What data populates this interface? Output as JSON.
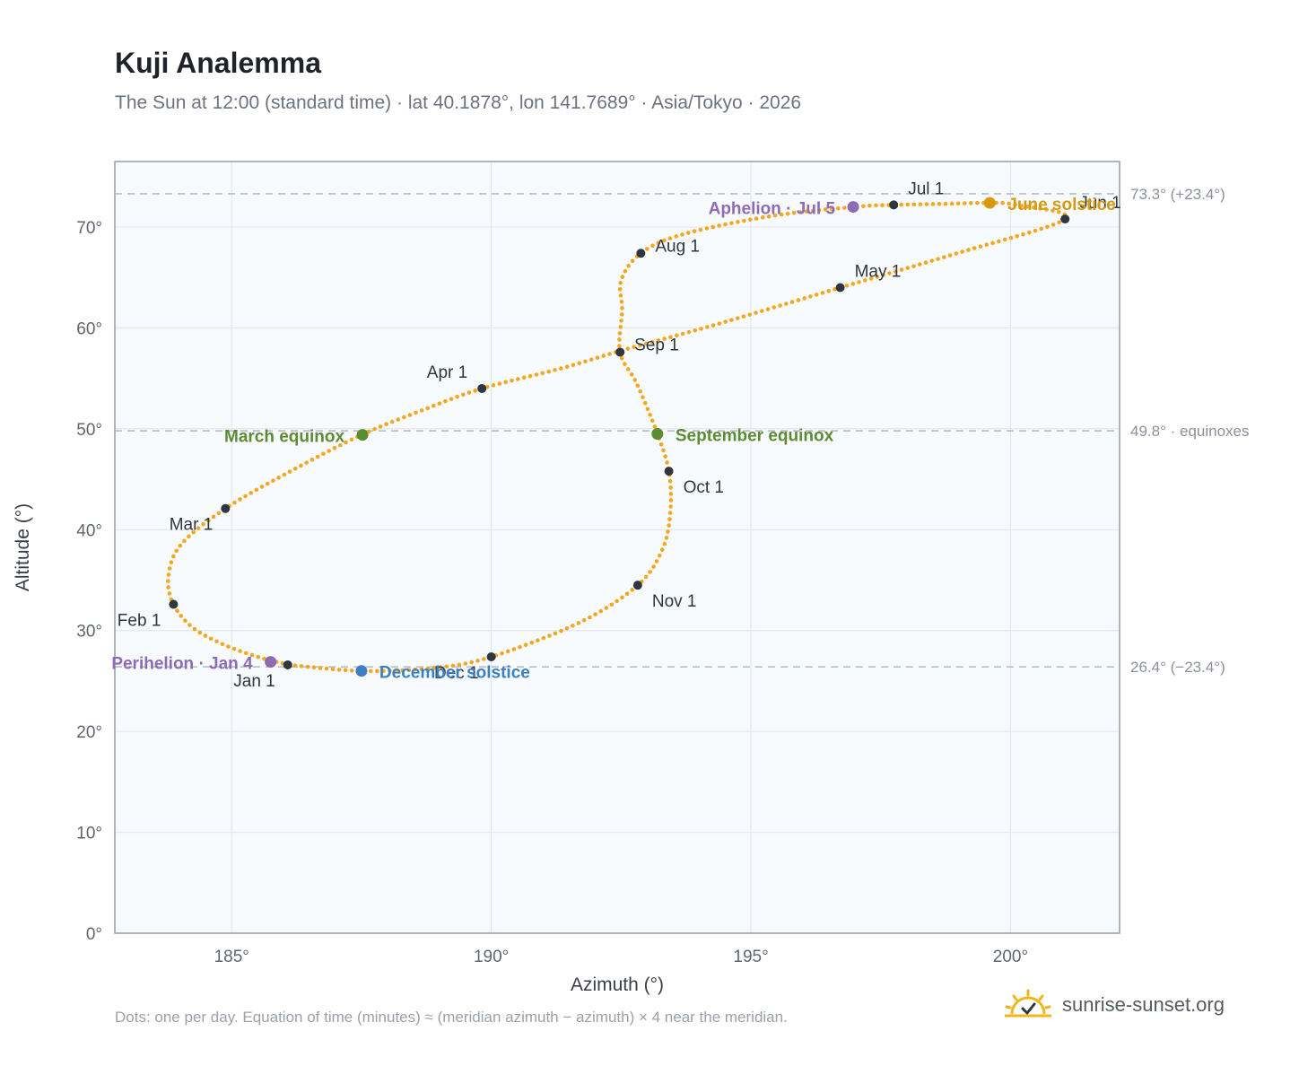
{
  "title": "Kuji Analemma",
  "subtitle": "The Sun at 12:00 (standard time) · lat 40.1878°, lon 141.7689° · Asia/Tokyo · 2026",
  "footer_note": "Dots: one per day. Equation of time (minutes) ≈ (meridian azimuth − azimuth) × 4 near the meridian.",
  "brand": {
    "name": "sunrise-sunset.org",
    "icon": "sun-check-icon"
  },
  "colors": {
    "path": "#f5a623",
    "month": "#2f3640",
    "equinox": "#5b8c32",
    "aphelion": "#8e6bb5",
    "june_solstice": "#d69a12",
    "december_solstice": "#3b7fc4",
    "plot_bg": "#f8fbfd",
    "ref_line": "#b8bec8"
  },
  "chart_data": {
    "type": "scatter",
    "xlabel": "Azimuth (°)",
    "ylabel": "Altitude (°)",
    "xlim": [
      182.75,
      202.1
    ],
    "ylim": [
      0,
      76.5
    ],
    "x_ticks": [
      185,
      190,
      195,
      200
    ],
    "x_tick_labels": [
      "185°",
      "190°",
      "195°",
      "200°"
    ],
    "y_ticks": [
      0,
      10,
      20,
      30,
      40,
      50,
      60,
      70
    ],
    "y_tick_labels": [
      "0°",
      "10°",
      "20°",
      "30°",
      "40°",
      "50°",
      "60°",
      "70°"
    ],
    "grid": true,
    "reference_lines": [
      {
        "y": 73.3,
        "label": "73.3° (+23.4°)"
      },
      {
        "y": 49.8,
        "label": "49.8° · equinoxes"
      },
      {
        "y": 26.4,
        "label": "26.4° (−23.4°)"
      }
    ],
    "series": [
      {
        "points": [
          [
            186.1,
            26.6
          ],
          [
            185.5,
            27.4
          ],
          [
            184.85,
            28.6
          ],
          [
            184.25,
            30.3
          ],
          [
            183.88,
            32.6
          ],
          [
            183.78,
            35.3
          ],
          [
            184.02,
            38.5
          ],
          [
            184.88,
            42.1
          ],
          [
            186.1,
            45.7
          ],
          [
            187.5,
            49.4
          ],
          [
            188.7,
            51.9
          ],
          [
            189.82,
            54.0
          ],
          [
            191.35,
            56.0
          ],
          [
            192.6,
            57.9
          ],
          [
            194.3,
            60.3
          ],
          [
            196.72,
            64.0
          ],
          [
            198.9,
            67.3
          ],
          [
            201.05,
            70.8
          ],
          [
            200.1,
            72.2
          ],
          [
            199.6,
            72.4
          ],
          [
            198.7,
            72.3
          ],
          [
            197.75,
            72.2
          ],
          [
            197.0,
            72.0
          ],
          [
            195.4,
            71.1
          ],
          [
            193.7,
            69.3
          ],
          [
            192.88,
            67.4
          ],
          [
            192.5,
            64.7
          ],
          [
            192.52,
            61.8
          ],
          [
            192.48,
            57.6
          ],
          [
            192.8,
            54.5
          ],
          [
            193.2,
            49.5
          ],
          [
            193.42,
            45.8
          ],
          [
            193.45,
            41.9
          ],
          [
            193.3,
            38.1
          ],
          [
            192.82,
            34.5
          ],
          [
            191.7,
            30.8
          ],
          [
            190.0,
            27.4
          ],
          [
            188.9,
            26.3
          ],
          [
            187.5,
            26.0
          ],
          [
            186.1,
            26.6
          ]
        ]
      }
    ],
    "month_markers": [
      {
        "label": "Jan 1",
        "x": 186.08,
        "y": 26.6,
        "anchor": "end",
        "pos": "below-left"
      },
      {
        "label": "Feb 1",
        "x": 183.88,
        "y": 32.6,
        "anchor": "end",
        "pos": "below-left"
      },
      {
        "label": "Mar 1",
        "x": 184.88,
        "y": 42.1,
        "anchor": "end",
        "pos": "below-left"
      },
      {
        "label": "Apr 1",
        "x": 189.82,
        "y": 54.0,
        "anchor": "end",
        "pos": "above-left"
      },
      {
        "label": "May 1",
        "x": 196.72,
        "y": 64.0,
        "anchor": "start",
        "pos": "above-right"
      },
      {
        "label": "Jun 1",
        "x": 201.05,
        "y": 70.8,
        "anchor": "start",
        "pos": "above-right"
      },
      {
        "label": "Jul 1",
        "x": 197.75,
        "y": 72.2,
        "anchor": "start",
        "pos": "above-right"
      },
      {
        "label": "Aug 1",
        "x": 192.88,
        "y": 67.4,
        "anchor": "start",
        "pos": "right"
      },
      {
        "label": "Sep 1",
        "x": 192.48,
        "y": 57.6,
        "anchor": "start",
        "pos": "right"
      },
      {
        "label": "Oct 1",
        "x": 193.42,
        "y": 45.8,
        "anchor": "start",
        "pos": "below-right"
      },
      {
        "label": "Nov 1",
        "x": 192.82,
        "y": 34.5,
        "anchor": "start",
        "pos": "below-right"
      },
      {
        "label": "Dec 1",
        "x": 190.0,
        "y": 27.4,
        "anchor": "end",
        "pos": "below-left"
      }
    ],
    "events": [
      {
        "label": "Perihelion · Jan 4",
        "x": 185.75,
        "y": 26.9,
        "kind": "aphelion",
        "anchor": "end"
      },
      {
        "label": "March equinox",
        "x": 187.52,
        "y": 49.4,
        "kind": "equinox",
        "anchor": "end"
      },
      {
        "label": "Aphelion · Jul 5",
        "x": 196.97,
        "y": 72.0,
        "kind": "aphelion",
        "anchor": "end"
      },
      {
        "label": "June solstice",
        "x": 199.6,
        "y": 72.4,
        "kind": "june_solstice",
        "anchor": "start"
      },
      {
        "label": "September equinox",
        "x": 193.2,
        "y": 49.5,
        "kind": "equinox",
        "anchor": "start"
      },
      {
        "label": "December solstice",
        "x": 187.5,
        "y": 26.0,
        "kind": "december_solstice",
        "anchor": "start"
      }
    ]
  }
}
